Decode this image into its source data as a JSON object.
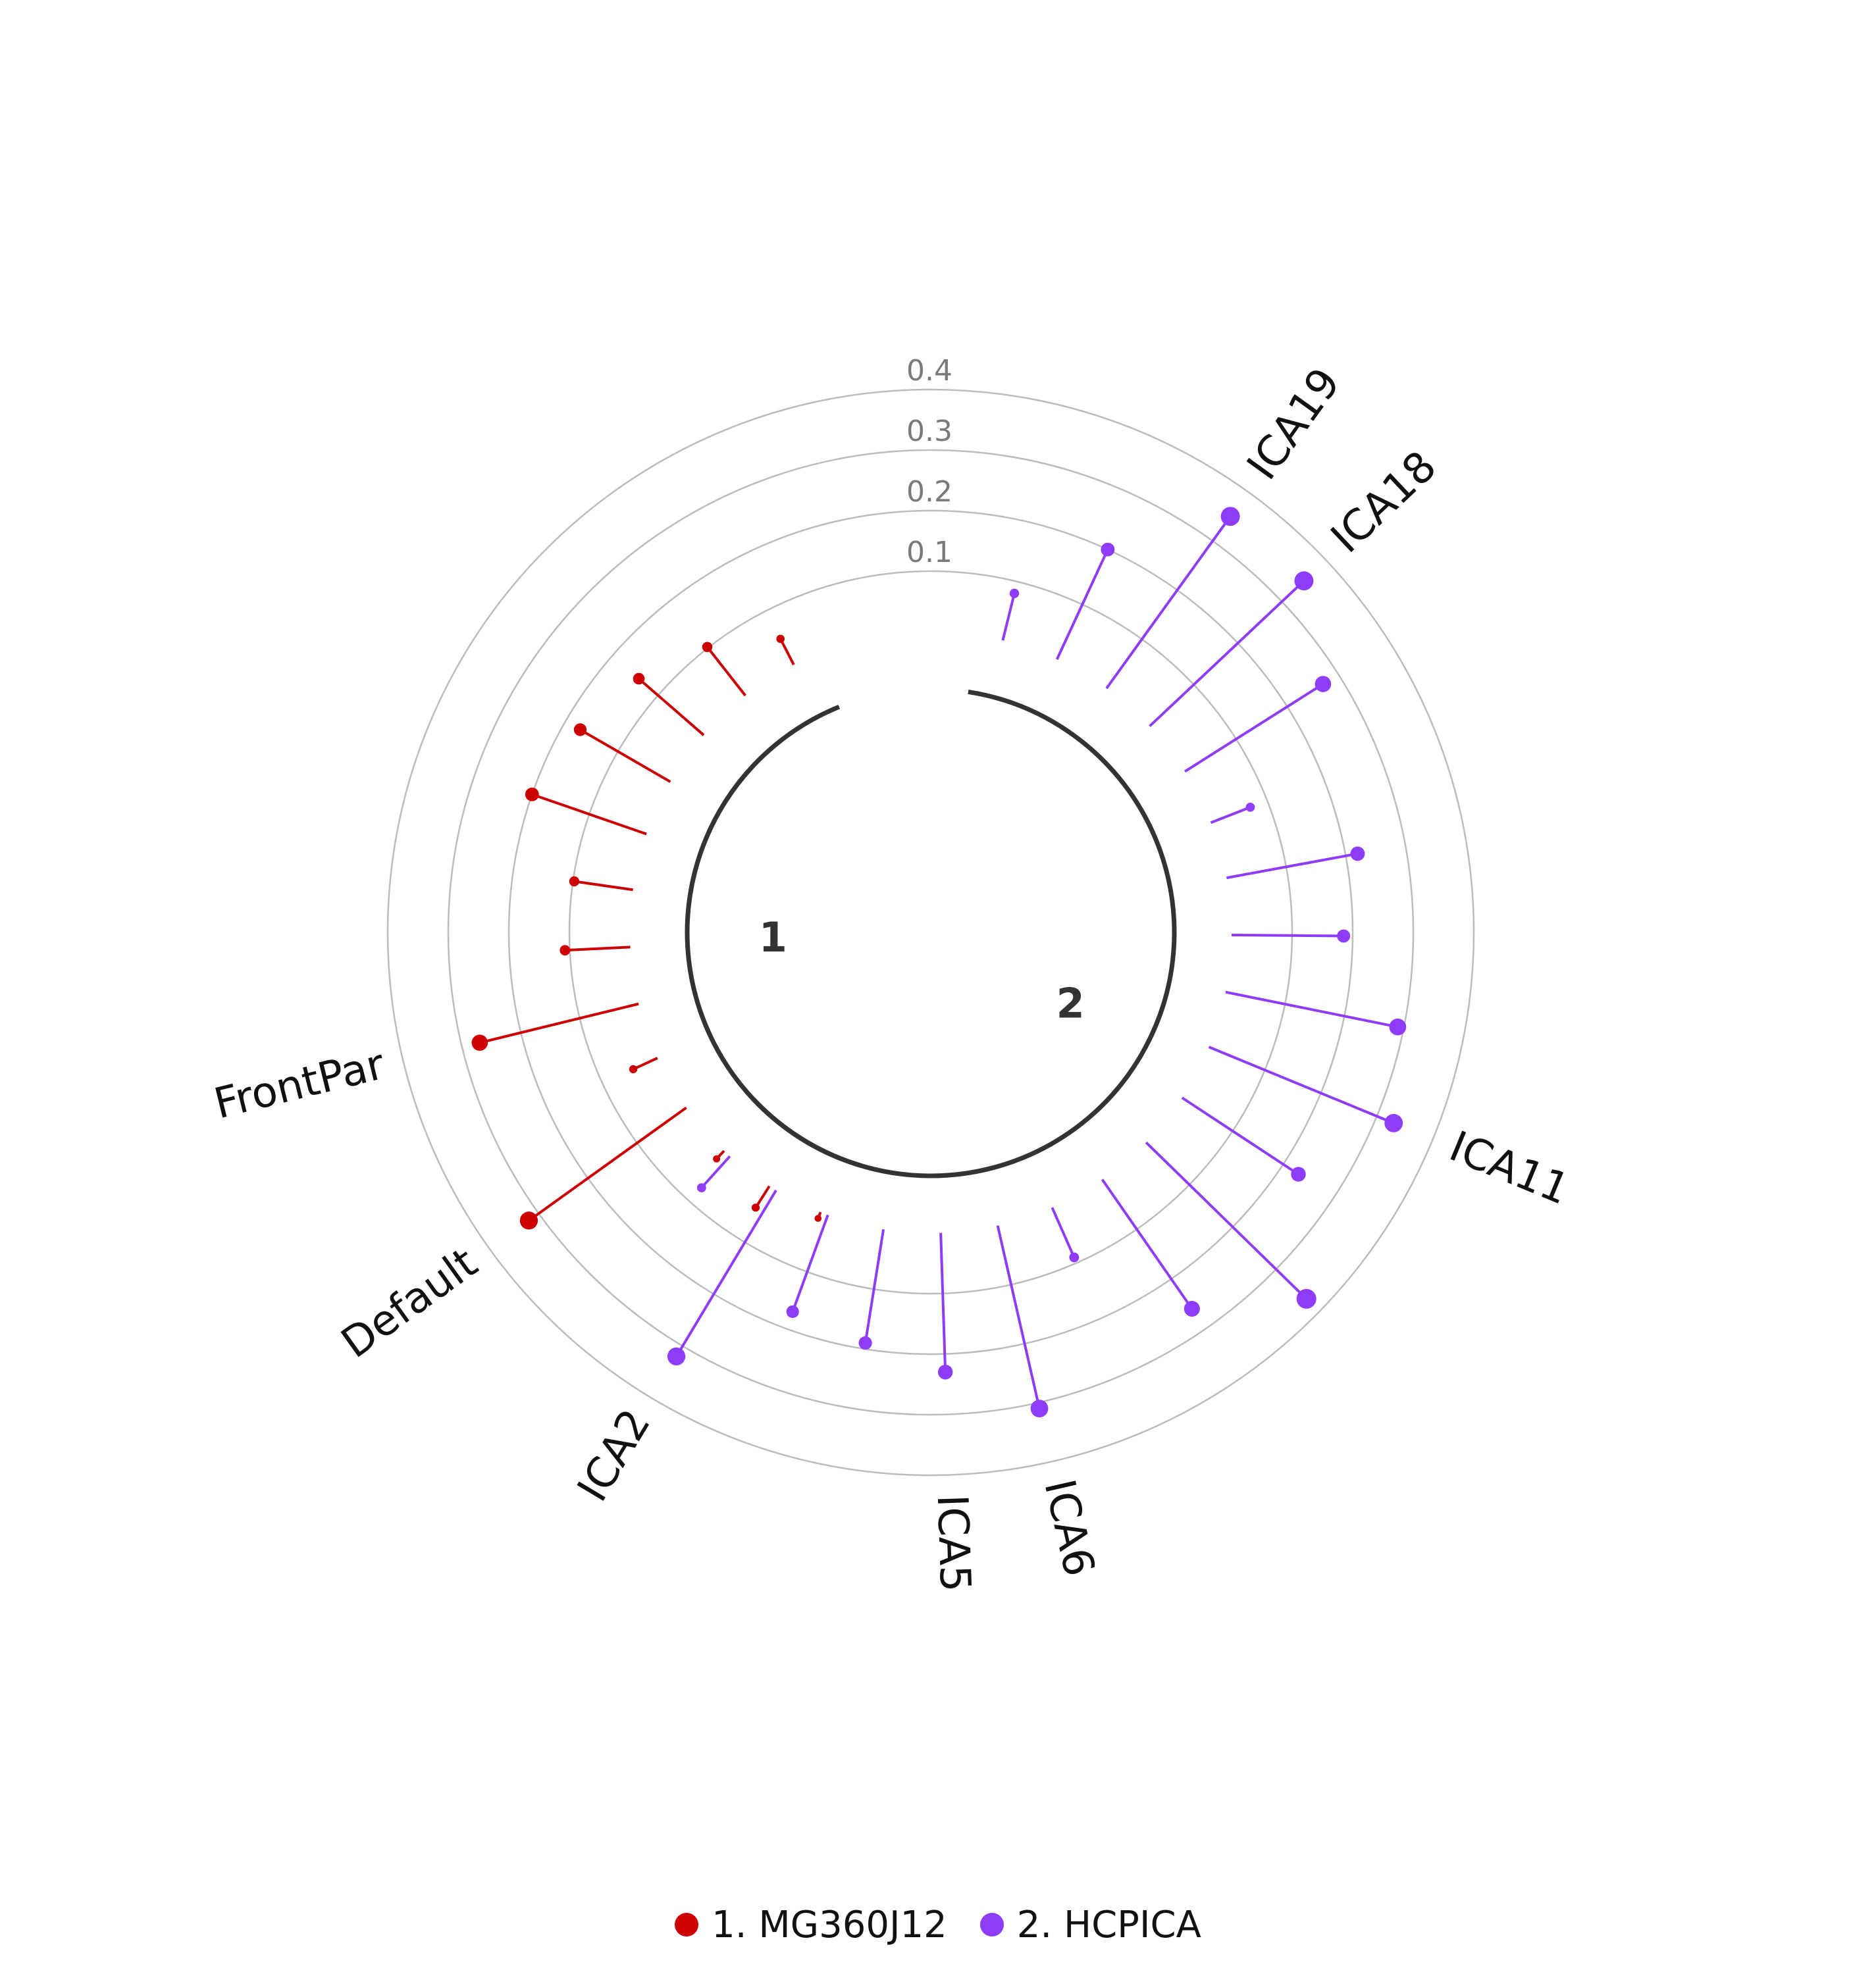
{
  "chart_data": {
    "type": "radial-lollipop",
    "radial_ticks": [
      0.1,
      0.2,
      0.3,
      0.4
    ],
    "rlim": [
      0,
      0.4
    ],
    "grid": true,
    "legend_placement": "bottom",
    "groups": [
      {
        "id": "1",
        "label": "1",
        "legend": "1. MG360J12",
        "color": "#cc0000"
      },
      {
        "id": "2",
        "label": "2",
        "legend": "2. HCPICA",
        "color": "#8e3cf7"
      }
    ],
    "points": [
      {
        "group": "1",
        "label": "",
        "value": 0.011
      },
      {
        "group": "1",
        "label": "",
        "value": 0.042
      },
      {
        "group": "1",
        "label": "",
        "value": 0.018
      },
      {
        "group": "1",
        "label": "Default",
        "value": 0.32
      },
      {
        "group": "1",
        "label": "",
        "value": 0.044
      },
      {
        "group": "1",
        "label": "FrontPar",
        "value": 0.27
      },
      {
        "group": "1",
        "label": "",
        "value": 0.108
      },
      {
        "group": "1",
        "label": "",
        "value": 0.098
      },
      {
        "group": "1",
        "label": "",
        "value": 0.2
      },
      {
        "group": "1",
        "label": "",
        "value": 0.172
      },
      {
        "group": "1",
        "label": "",
        "value": 0.142
      },
      {
        "group": "1",
        "label": "",
        "value": 0.102
      },
      {
        "group": "1",
        "label": "",
        "value": 0.048
      },
      {
        "group": "2",
        "label": "",
        "value": 0.08
      },
      {
        "group": "2",
        "label": "",
        "value": 0.2
      },
      {
        "group": "2",
        "label": "ICA19",
        "value": 0.35
      },
      {
        "group": "2",
        "label": "ICA18",
        "value": 0.35
      },
      {
        "group": "2",
        "label": "",
        "value": 0.27
      },
      {
        "group": "2",
        "label": "",
        "value": 0.07
      },
      {
        "group": "2",
        "label": "",
        "value": 0.22
      },
      {
        "group": "2",
        "label": "",
        "value": 0.185
      },
      {
        "group": "2",
        "label": "",
        "value": 0.29
      },
      {
        "group": "2",
        "label": "ICA11",
        "value": 0.33
      },
      {
        "group": "2",
        "label": "",
        "value": 0.23
      },
      {
        "group": "2",
        "label": "",
        "value": 0.37
      },
      {
        "group": "2",
        "label": "",
        "value": 0.26
      },
      {
        "group": "2",
        "label": "",
        "value": 0.09
      },
      {
        "group": "2",
        "label": "ICA6",
        "value": 0.31
      },
      {
        "group": "2",
        "label": "ICA5",
        "value": 0.23
      },
      {
        "group": "2",
        "label": "",
        "value": 0.19
      },
      {
        "group": "2",
        "label": "",
        "value": 0.17
      },
      {
        "group": "2",
        "label": "ICA2",
        "value": 0.32
      },
      {
        "group": "2",
        "label": "",
        "value": 0.07
      }
    ]
  }
}
